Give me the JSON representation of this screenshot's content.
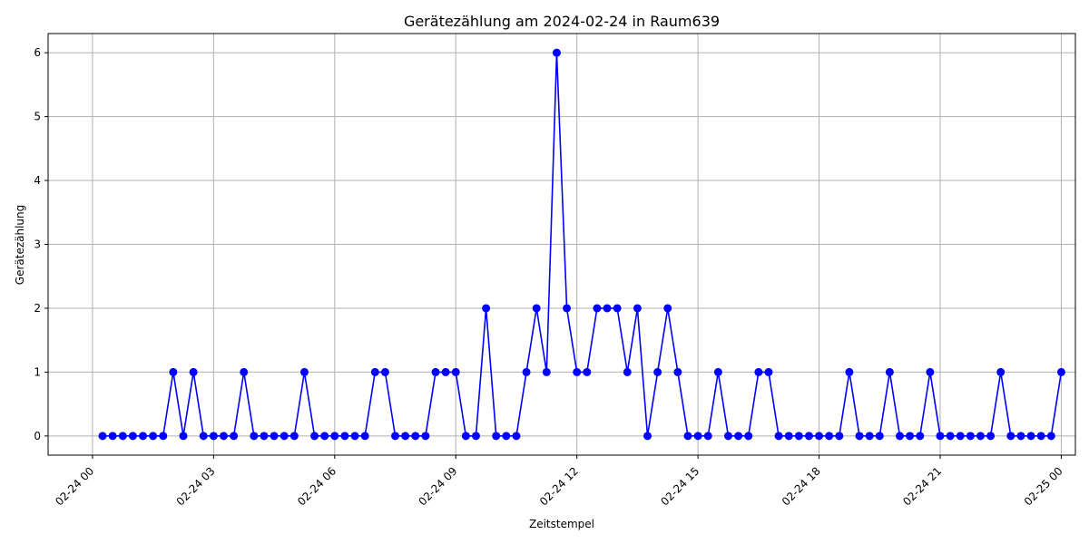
{
  "chart_data": {
    "type": "line",
    "title": "Gerätezählung am 2024-02-24 in Raum639",
    "xlabel": "Zeitstempel",
    "ylabel": "Gerätezählung",
    "x_start": "2024-02-24 00:15",
    "x_step_minutes": 15,
    "xlim": [
      "2024-02-23 22:54",
      "2024-02-25 00:21"
    ],
    "ylim": [
      -0.3,
      6.3
    ],
    "x_ticks": [
      {
        "label": "02-24 00",
        "value": "2024-02-24 00:00"
      },
      {
        "label": "02-24 03",
        "value": "2024-02-24 03:00"
      },
      {
        "label": "02-24 06",
        "value": "2024-02-24 06:00"
      },
      {
        "label": "02-24 09",
        "value": "2024-02-24 09:00"
      },
      {
        "label": "02-24 12",
        "value": "2024-02-24 12:00"
      },
      {
        "label": "02-24 15",
        "value": "2024-02-24 15:00"
      },
      {
        "label": "02-24 18",
        "value": "2024-02-24 18:00"
      },
      {
        "label": "02-24 21",
        "value": "2024-02-24 21:00"
      },
      {
        "label": "02-25 00",
        "value": "2024-02-25 00:00"
      }
    ],
    "y_ticks": [
      "0",
      "1",
      "2",
      "3",
      "4",
      "5",
      "6"
    ],
    "grid": true,
    "series": [
      {
        "color": "#0000ff",
        "marker": "circle",
        "values": [
          0,
          0,
          0,
          0,
          0,
          0,
          0,
          1,
          0,
          1,
          0,
          0,
          0,
          0,
          1,
          0,
          0,
          0,
          0,
          0,
          1,
          0,
          0,
          0,
          0,
          0,
          0,
          1,
          1,
          0,
          0,
          0,
          0,
          1,
          1,
          1,
          0,
          0,
          2,
          0,
          0,
          0,
          1,
          2,
          1,
          6,
          2,
          1,
          1,
          2,
          2,
          2,
          1,
          2,
          0,
          1,
          2,
          1,
          0,
          0,
          0,
          1,
          0,
          0,
          0,
          1,
          1,
          0,
          0,
          0,
          0,
          0,
          0,
          0,
          1,
          0,
          0,
          0,
          1,
          0,
          0,
          0,
          1,
          0,
          0,
          0,
          0,
          0,
          0,
          1,
          0,
          0,
          0,
          0,
          0,
          1
        ]
      }
    ]
  }
}
